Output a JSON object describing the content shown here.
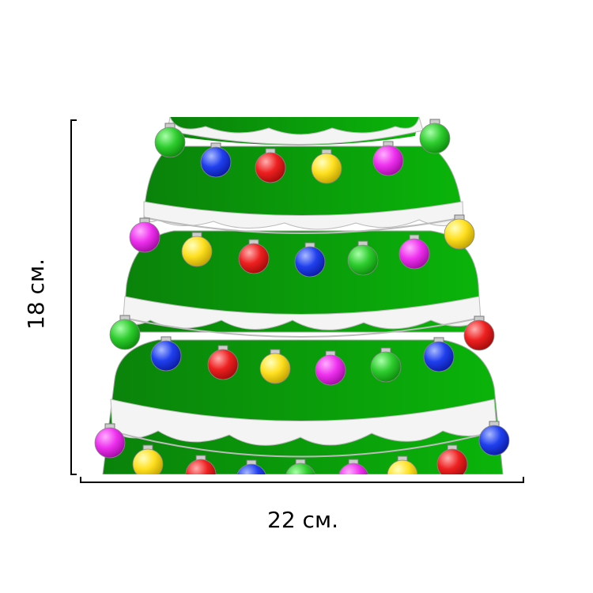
{
  "dimensions": {
    "height": "18 см.",
    "width": "22 см."
  }
}
